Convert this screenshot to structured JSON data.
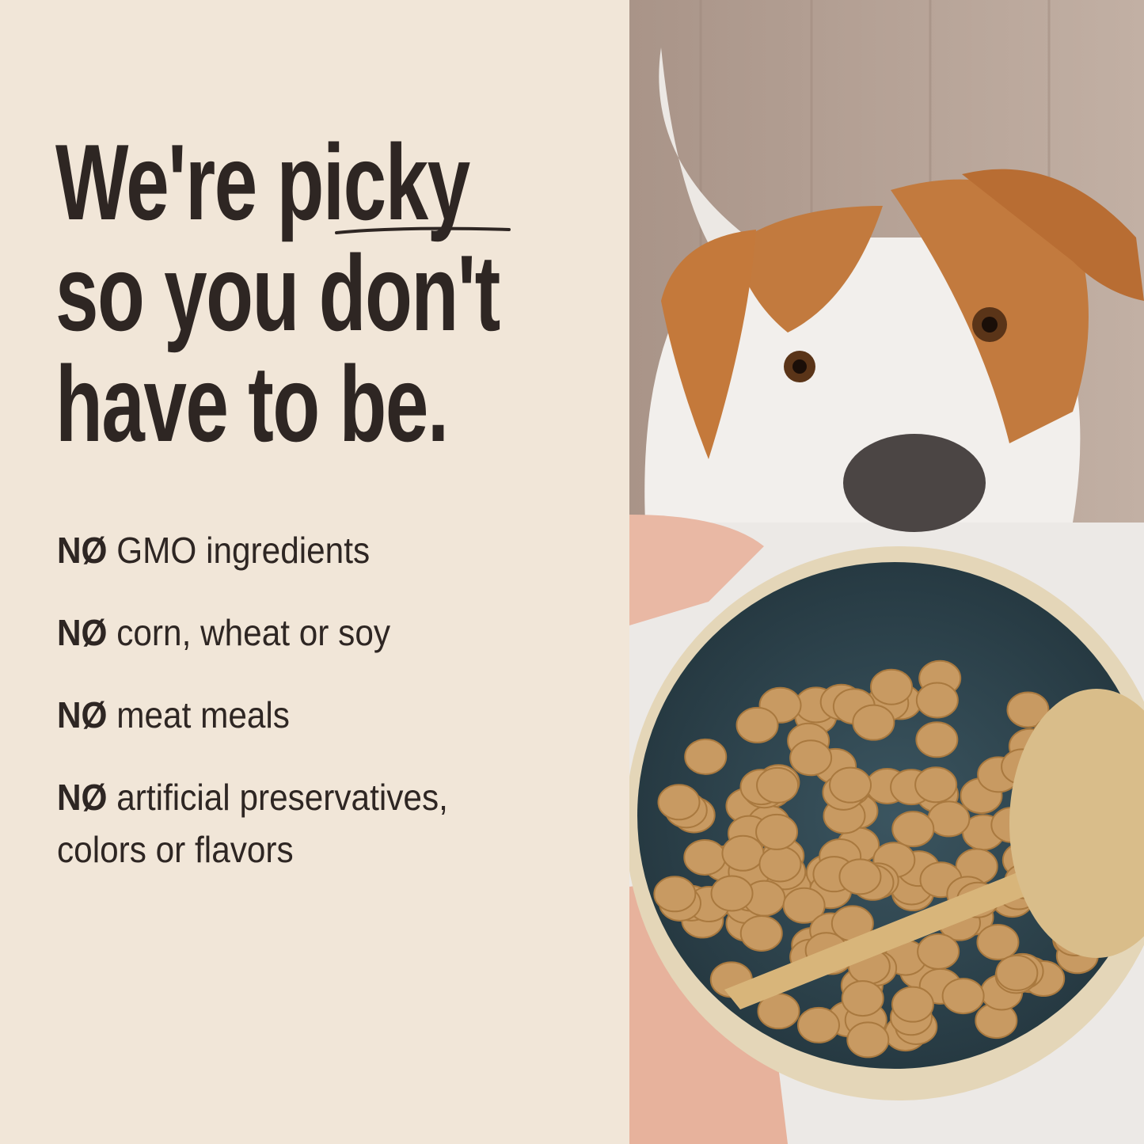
{
  "headline": {
    "line1_pre": "We're ",
    "line1_emphasis": "picky",
    "line2": "so you don't",
    "line3": "have to be."
  },
  "list": {
    "prefix": "NØ",
    "items": [
      {
        "text": "GMO ingredients"
      },
      {
        "text": "corn, wheat or soy"
      },
      {
        "text": "meat meals"
      },
      {
        "text": "artificial preservatives,",
        "text2": "colors or flavors"
      }
    ]
  },
  "colors": {
    "background": "#f1e6d8",
    "text": "#2e2623",
    "bowl": "#2f4752",
    "dog_fur": "#c27a3e"
  }
}
